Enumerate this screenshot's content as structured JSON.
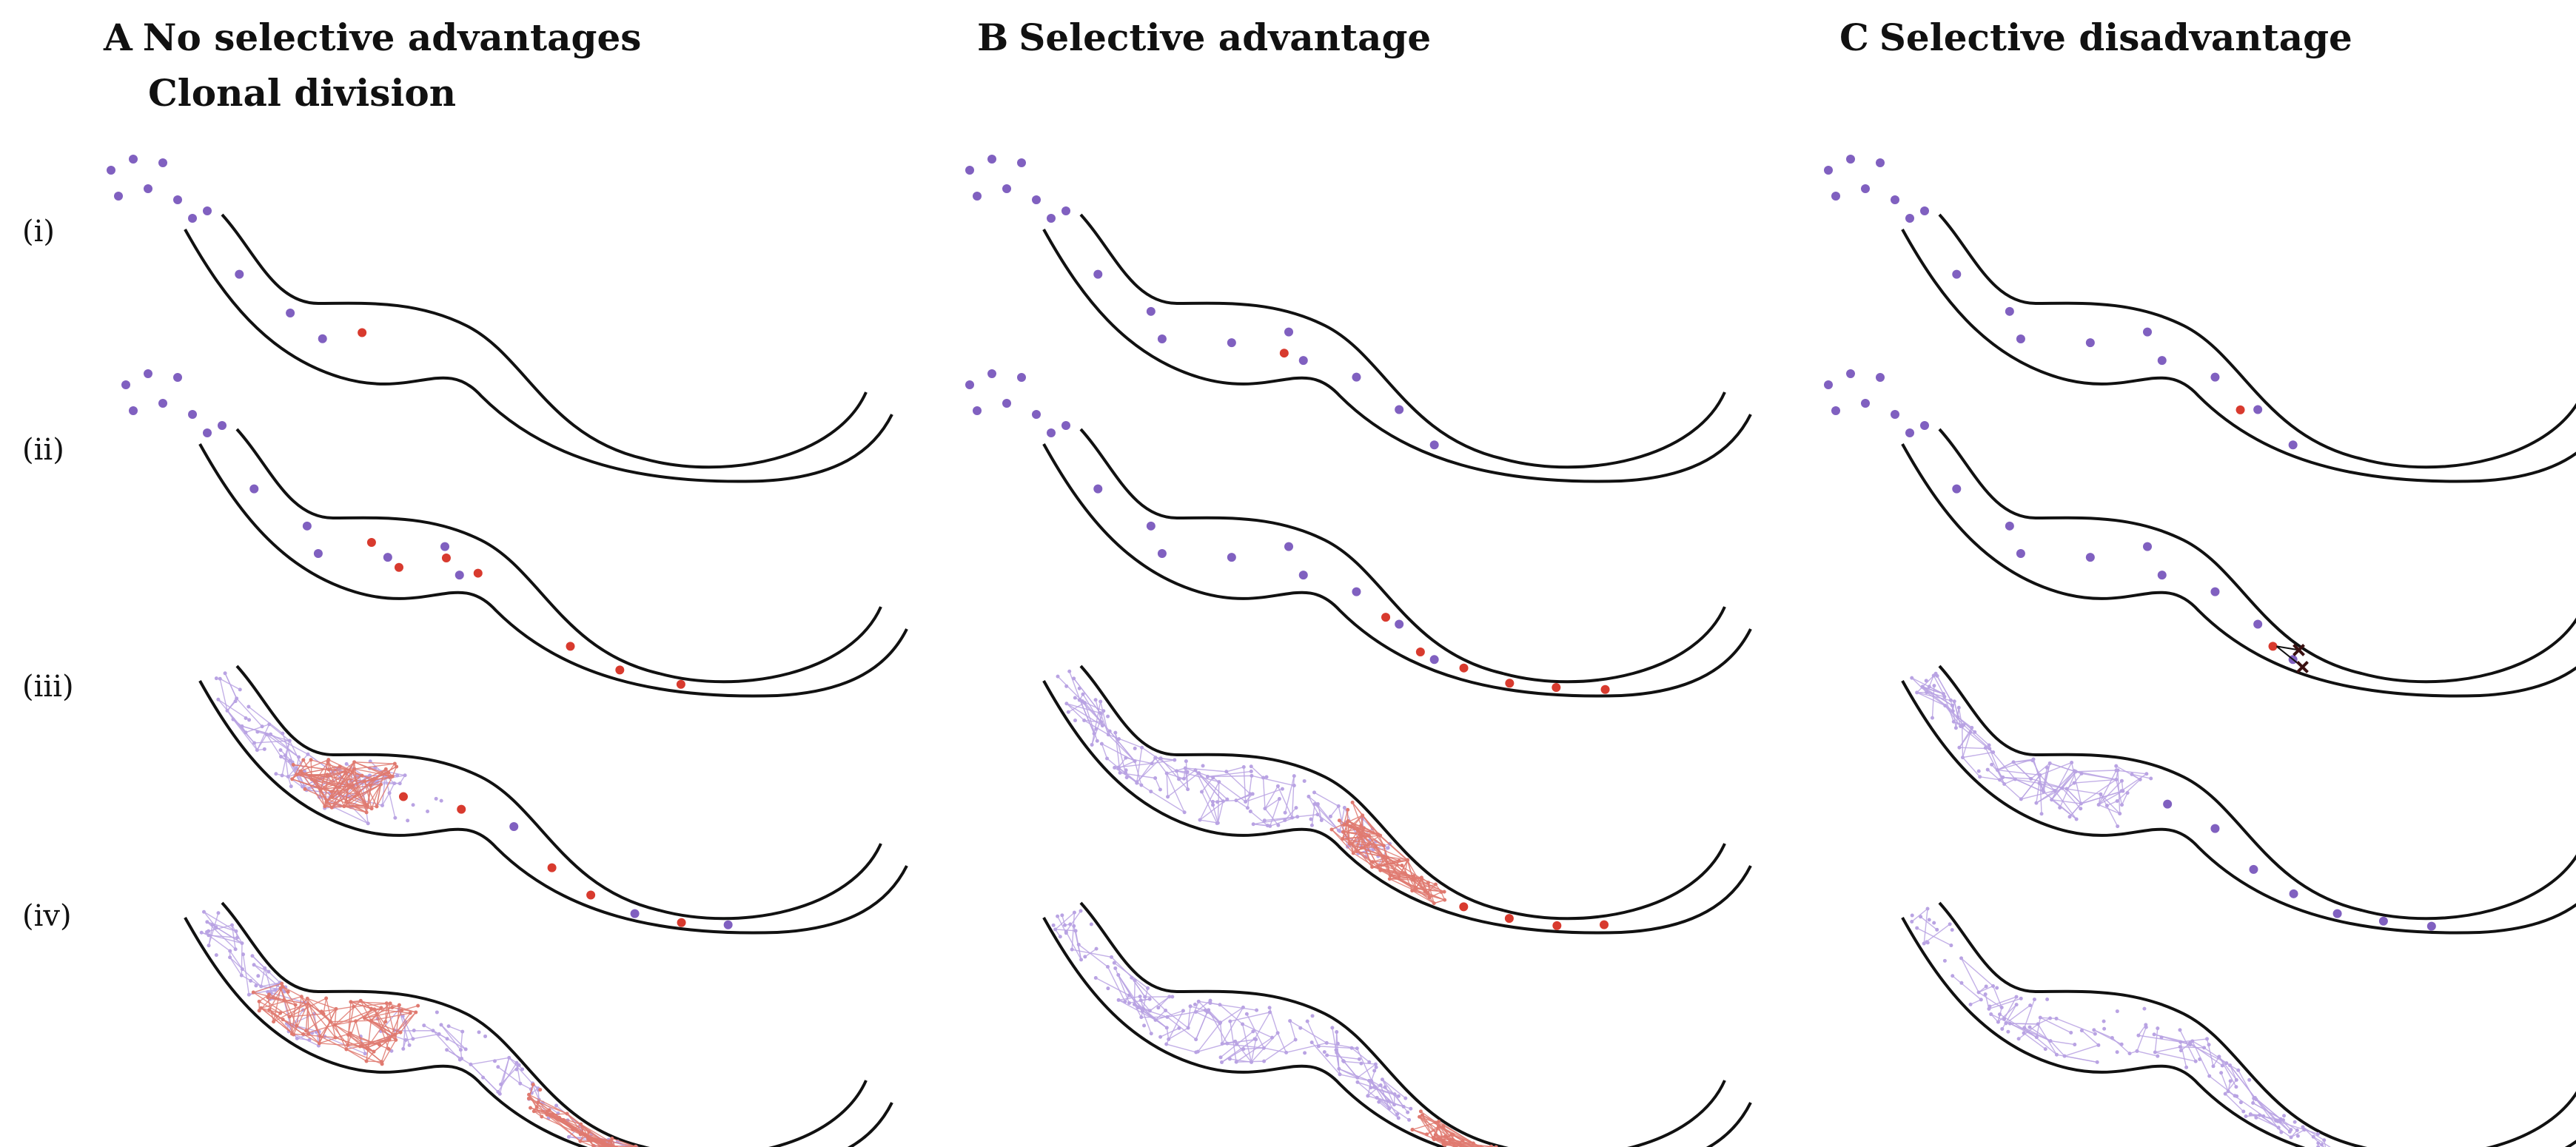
{
  "panels": [
    {
      "letter": "A",
      "title": "No selective advantages",
      "subtitle": "Clonal division"
    },
    {
      "letter": "B",
      "title": "Selective advantage",
      "subtitle": ""
    },
    {
      "letter": "C",
      "title": "Selective disadvantage",
      "subtitle": ""
    }
  ],
  "row_labels": [
    "(i)",
    "(ii)",
    "(iii)",
    "(iv)"
  ],
  "colors": {
    "normal_cell": "#8060c0",
    "normal_net": "#b9a3e3",
    "mutant_cell": "#d83a2e",
    "mutant_net": "#e07a70",
    "outline": "#111111"
  }
}
